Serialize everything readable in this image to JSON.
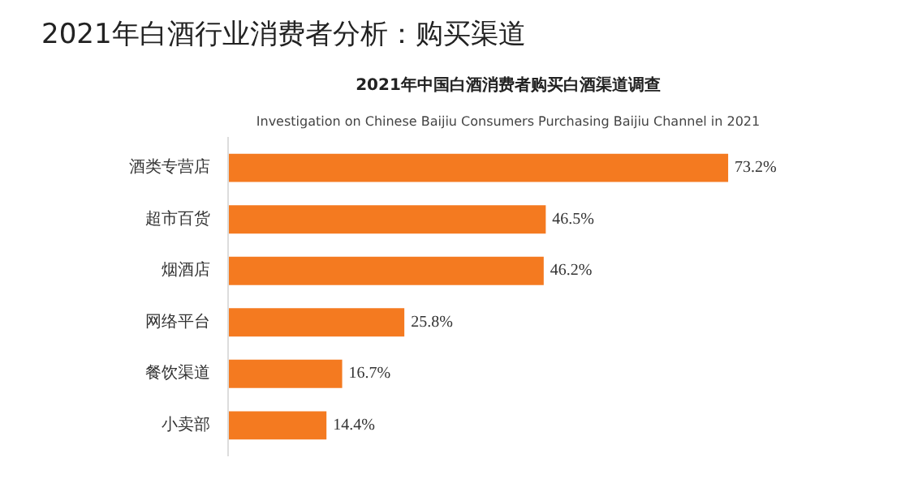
{
  "chart_data": {
    "type": "bar",
    "orientation": "horizontal",
    "title": "2021年白酒行业消费者分析：购买渠道",
    "subtitle": "2021年中国白酒消费者购买白酒渠道调查",
    "annotations": [
      "Investigation on Chinese Baijiu Consumers Purchasing Baijiu Channel in 2021"
    ],
    "categories": [
      "酒类专营店",
      "超市百货",
      "烟酒店",
      "网络平台",
      "餐饮渠道",
      "小卖部"
    ],
    "values": [
      73.2,
      46.5,
      46.2,
      25.8,
      16.7,
      14.4
    ],
    "value_labels": [
      "73.2%",
      "46.5%",
      "46.2%",
      "25.8%",
      "16.7%",
      "14.4%"
    ],
    "color": "#f47a20",
    "grid": false
  }
}
